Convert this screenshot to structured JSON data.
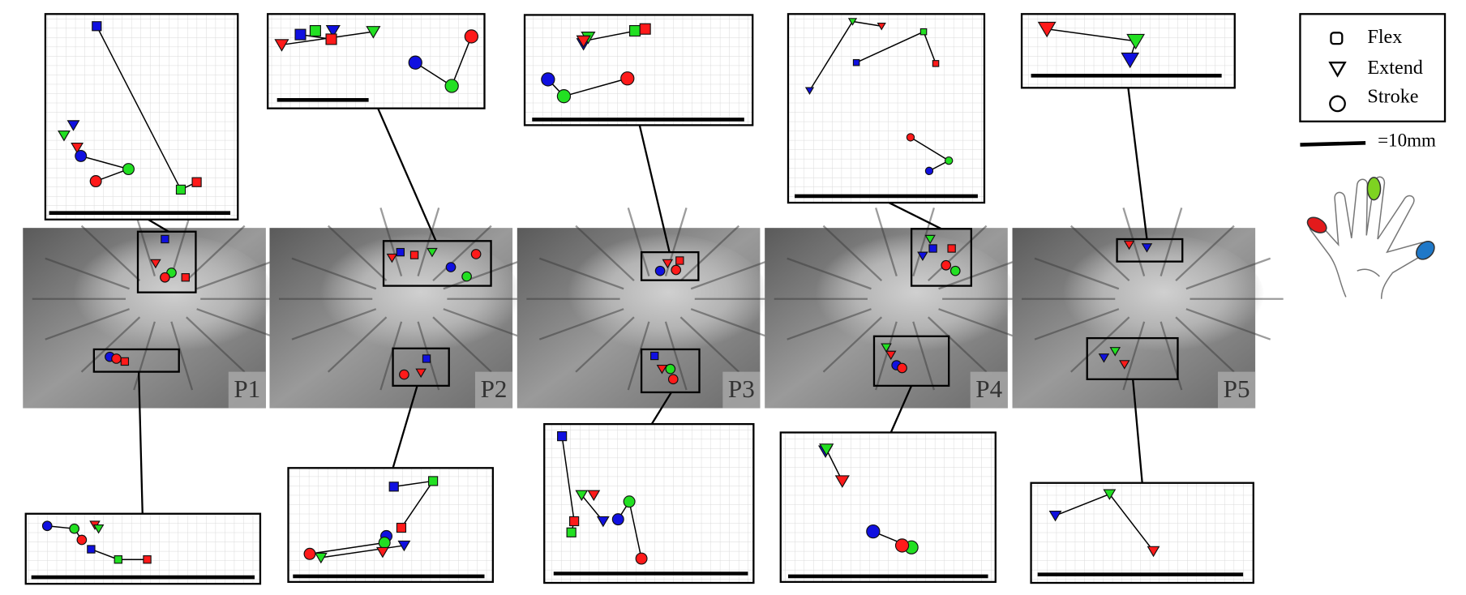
{
  "legend": {
    "items": [
      "Flex",
      "Extend",
      "Stroke"
    ],
    "scale_label": "=10mm"
  },
  "panels": [
    "P1",
    "P2",
    "P3",
    "P4",
    "P5"
  ]
}
